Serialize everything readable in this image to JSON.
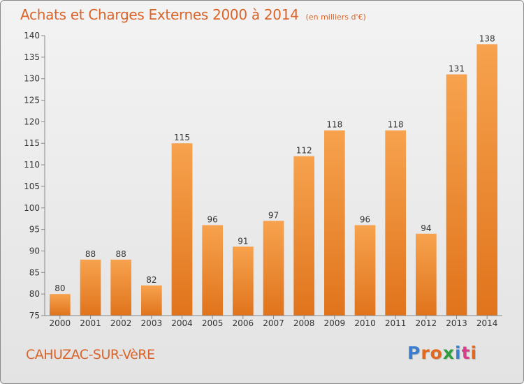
{
  "header": {
    "title": "Achats et Charges Externes 2000 à 2014",
    "subtitle": "(en milliers d'€)"
  },
  "footer": {
    "commune": "CAHUZAC-SUR-VèRE",
    "logo_letters": [
      "P",
      "r",
      "o",
      "x",
      "i",
      "t",
      "i"
    ],
    "logo_colors": [
      "#3a7fcf",
      "#e2681f",
      "#e2681f",
      "#2e9e3f",
      "#3a7fcf",
      "#d83d8c",
      "#e2681f"
    ]
  },
  "chart_data": {
    "type": "bar",
    "title": "Achats et Charges Externes 2000 à 2014",
    "subtitle": "(en milliers d'€)",
    "categories": [
      "2000",
      "2001",
      "2002",
      "2003",
      "2004",
      "2005",
      "2006",
      "2007",
      "2008",
      "2009",
      "2010",
      "2011",
      "2012",
      "2013",
      "2014"
    ],
    "values": [
      80,
      88,
      88,
      82,
      115,
      96,
      91,
      97,
      112,
      118,
      96,
      118,
      94,
      131,
      138
    ],
    "ylim": [
      75,
      140
    ],
    "yticks": [
      75,
      80,
      85,
      90,
      95,
      100,
      105,
      110,
      115,
      120,
      125,
      130,
      135,
      140
    ],
    "grid": false,
    "bar_color_top": "#f7a24e",
    "bar_color_bottom": "#e0741c",
    "axis_color": "#888888"
  }
}
